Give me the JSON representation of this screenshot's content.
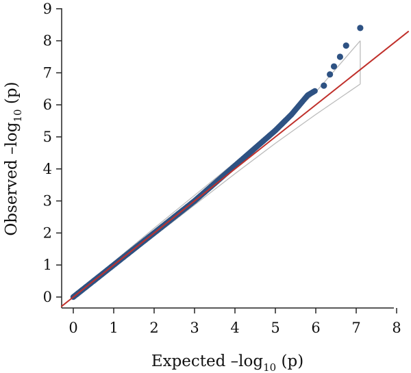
{
  "chart_data": {
    "type": "scatter",
    "title": "",
    "xlabel": {
      "prefix": "Expected –log",
      "sub": "10",
      "suffix": " (p)"
    },
    "ylabel": {
      "prefix": "Observed –log",
      "sub": "10",
      "suffix": " (p)"
    },
    "xlim": [
      -0.3,
      8
    ],
    "ylim": [
      -0.3,
      9
    ],
    "xticks": [
      "0",
      "1",
      "2",
      "3",
      "4",
      "5",
      "6",
      "7",
      "8"
    ],
    "yticks": [
      "0",
      "1",
      "2",
      "3",
      "4",
      "5",
      "6",
      "7",
      "8",
      "9"
    ],
    "grid": false,
    "legend": "none",
    "reference_line": {
      "from": [
        -0.3,
        -0.3
      ],
      "to": [
        8.3,
        8.3
      ],
      "color": "#c0302b"
    },
    "confidence_band": {
      "color": "#bbbbbb",
      "upper": [
        [
          0,
          0.05
        ],
        [
          2,
          2.15
        ],
        [
          4,
          4.2
        ],
        [
          5,
          5.25
        ],
        [
          6,
          6.4
        ],
        [
          7.1,
          8.0
        ]
      ],
      "lower": [
        [
          0,
          -0.05
        ],
        [
          2,
          1.9
        ],
        [
          4,
          3.85
        ],
        [
          5,
          4.8
        ],
        [
          6,
          5.7
        ],
        [
          7.1,
          6.65
        ]
      ]
    },
    "point_color": "#2e5283",
    "points_dense_path": [
      [
        0,
        0
      ],
      [
        0.5,
        0.5
      ],
      [
        1,
        1
      ],
      [
        1.5,
        1.5
      ],
      [
        2,
        2
      ],
      [
        2.5,
        2.5
      ],
      [
        3,
        3
      ],
      [
        3.5,
        3.55
      ],
      [
        4,
        4.1
      ],
      [
        4.5,
        4.65
      ],
      [
        5,
        5.2
      ],
      [
        5.4,
        5.7
      ],
      [
        5.6,
        6.0
      ],
      [
        5.8,
        6.3
      ],
      [
        6.0,
        6.45
      ]
    ],
    "points_tail": [
      [
        6.2,
        6.6
      ],
      [
        6.35,
        6.95
      ],
      [
        6.45,
        7.2
      ],
      [
        6.6,
        7.5
      ],
      [
        6.75,
        7.85
      ],
      [
        7.1,
        8.4
      ]
    ]
  }
}
